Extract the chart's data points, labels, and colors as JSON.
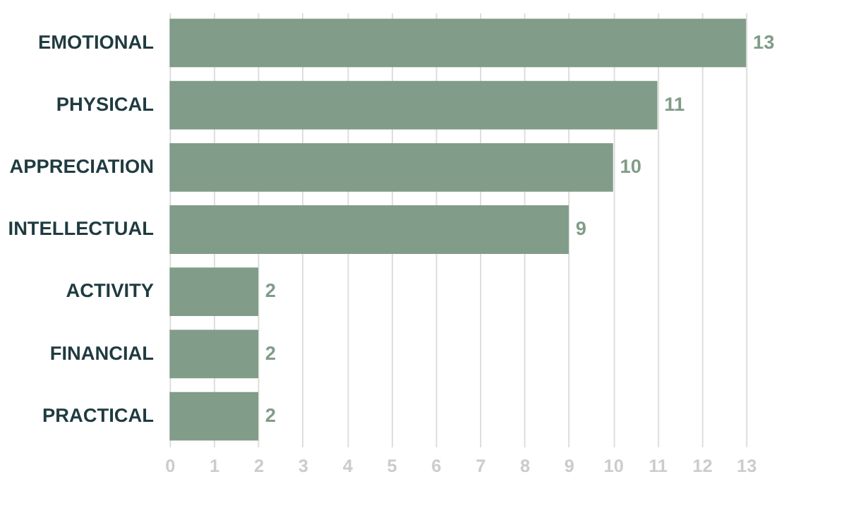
{
  "chart_data": {
    "type": "bar",
    "orientation": "horizontal",
    "categories": [
      "EMOTIONAL",
      "PHYSICAL",
      "APPRECIATION",
      "INTELLECTUAL",
      "ACTIVITY",
      "FINANCIAL",
      "PRACTICAL"
    ],
    "values": [
      13,
      11,
      10,
      9,
      2,
      2,
      2
    ],
    "color": "#819c88",
    "xlim": [
      0,
      13
    ],
    "xticks": [
      0,
      1,
      2,
      3,
      4,
      5,
      6,
      7,
      8,
      9,
      10,
      11,
      12,
      13
    ],
    "grid": "x",
    "data_labels": true
  }
}
